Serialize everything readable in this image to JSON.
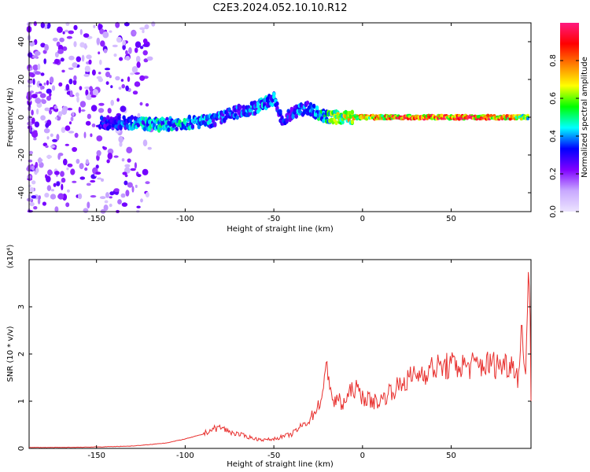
{
  "figure_title": "C2E3.2024.052.10.10.R12",
  "chart_data": [
    {
      "type": "heatmap",
      "title": "C2E3.2024.052.10.10.R12",
      "xlabel": "Height of straight line (km)",
      "ylabel": "Frequency (Hz)",
      "xlim": [
        -188,
        95
      ],
      "ylim": [
        -50,
        50
      ],
      "x_ticks": [
        -150,
        -100,
        -50,
        0,
        50
      ],
      "y_ticks": [
        -40,
        -20,
        0,
        20,
        40
      ],
      "grid": false,
      "colorbar": {
        "label": "Normalized spectral amplitude",
        "range": [
          0,
          1
        ],
        "ticks": [
          0.0,
          0.2,
          0.4,
          0.6,
          0.8
        ],
        "colors": [
          "#ece4ff",
          "#c8a8ff",
          "#7f00ff",
          "#0000ff",
          "#00ffff",
          "#00ff00",
          "#ffff00",
          "#ff8000",
          "#ff0000",
          "#ff1a80"
        ]
      },
      "ridge": {
        "x": [
          -145,
          -130,
          -115,
          -100,
          -85,
          -70,
          -60,
          -50,
          -45,
          -40,
          -35,
          -30,
          -25,
          -20,
          -10,
          0,
          10,
          20,
          40,
          60,
          80,
          95
        ],
        "frequency": [
          -3,
          -3,
          -4,
          -3,
          -2,
          3,
          5,
          10,
          -3,
          2,
          4,
          5,
          2,
          0,
          0,
          0,
          0,
          0,
          0,
          0,
          0,
          0
        ],
        "amplitude": [
          0.35,
          0.45,
          0.5,
          0.5,
          0.45,
          0.4,
          0.45,
          0.45,
          0.35,
          0.4,
          0.45,
          0.4,
          0.5,
          0.6,
          0.75,
          0.8,
          0.85,
          0.95,
          0.95,
          0.95,
          0.95,
          0.6
        ]
      }
    },
    {
      "type": "line",
      "xlabel": "Height of straight line (km)",
      "ylabel": "SNR (10 * v/v)",
      "y_multiplier": "(x10⁴)",
      "xlim": [
        -188,
        95
      ],
      "ylim": [
        0,
        4
      ],
      "x_ticks": [
        -150,
        -100,
        -50,
        0,
        50
      ],
      "y_ticks": [
        0,
        1,
        2,
        3
      ],
      "grid": false,
      "line_color": "#e8302e",
      "series": [
        {
          "x": [
            -188,
            -170,
            -150,
            -130,
            -120,
            -110,
            -100,
            -90,
            -85,
            -80,
            -75,
            -70,
            -65,
            -60,
            -55,
            -50,
            -45,
            -40,
            -35,
            -30,
            -25,
            -22,
            -20,
            -18,
            -16,
            -14,
            -12,
            -10,
            -8,
            -5,
            0,
            5,
            10,
            15,
            20,
            25,
            30,
            40,
            50,
            60,
            70,
            80,
            85,
            88,
            90,
            92,
            93,
            94,
            95
          ],
          "values": [
            0.02,
            0.02,
            0.03,
            0.05,
            0.08,
            0.12,
            0.2,
            0.3,
            0.4,
            0.45,
            0.35,
            0.3,
            0.25,
            0.2,
            0.18,
            0.2,
            0.25,
            0.3,
            0.45,
            0.6,
            0.9,
            1.2,
            1.8,
            1.3,
            0.9,
            1.1,
            0.9,
            1.0,
            1.1,
            1.3,
            1.1,
            1.0,
            1.0,
            1.2,
            1.3,
            1.45,
            1.55,
            1.7,
            1.75,
            1.75,
            1.78,
            1.78,
            1.8,
            1.5,
            2.6,
            1.6,
            3.0,
            3.9,
            1.0
          ]
        }
      ]
    }
  ]
}
